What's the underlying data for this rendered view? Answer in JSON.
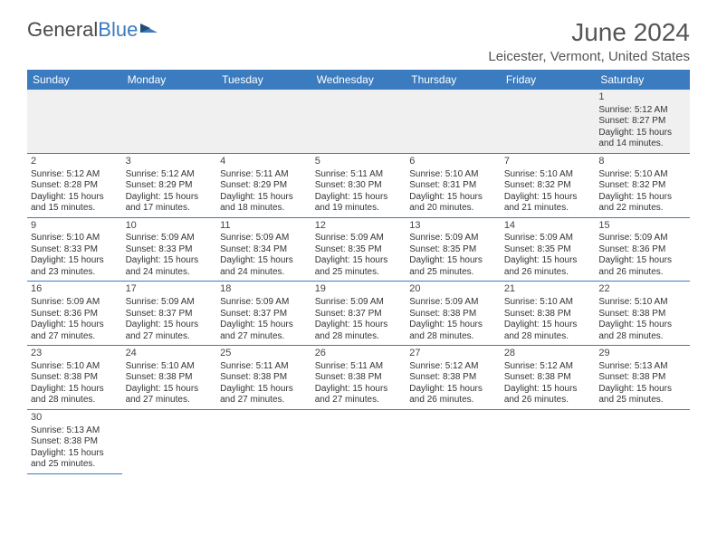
{
  "logo": {
    "text1": "General",
    "text2": "Blue"
  },
  "title": "June 2024",
  "location": "Leicester, Vermont, United States",
  "colors": {
    "header_bg": "#3b7bbf",
    "header_text": "#ffffff",
    "border": "#3b7bbf",
    "logo_gray": "#4a4a4a",
    "logo_blue": "#3b7bbf",
    "text": "#333333",
    "empty_bg": "#f0f0f0"
  },
  "days_of_week": [
    "Sunday",
    "Monday",
    "Tuesday",
    "Wednesday",
    "Thursday",
    "Friday",
    "Saturday"
  ],
  "weeks": [
    [
      null,
      null,
      null,
      null,
      null,
      null,
      {
        "n": "1",
        "sr": "Sunrise: 5:12 AM",
        "ss": "Sunset: 8:27 PM",
        "d1": "Daylight: 15 hours",
        "d2": "and 14 minutes."
      }
    ],
    [
      {
        "n": "2",
        "sr": "Sunrise: 5:12 AM",
        "ss": "Sunset: 8:28 PM",
        "d1": "Daylight: 15 hours",
        "d2": "and 15 minutes."
      },
      {
        "n": "3",
        "sr": "Sunrise: 5:12 AM",
        "ss": "Sunset: 8:29 PM",
        "d1": "Daylight: 15 hours",
        "d2": "and 17 minutes."
      },
      {
        "n": "4",
        "sr": "Sunrise: 5:11 AM",
        "ss": "Sunset: 8:29 PM",
        "d1": "Daylight: 15 hours",
        "d2": "and 18 minutes."
      },
      {
        "n": "5",
        "sr": "Sunrise: 5:11 AM",
        "ss": "Sunset: 8:30 PM",
        "d1": "Daylight: 15 hours",
        "d2": "and 19 minutes."
      },
      {
        "n": "6",
        "sr": "Sunrise: 5:10 AM",
        "ss": "Sunset: 8:31 PM",
        "d1": "Daylight: 15 hours",
        "d2": "and 20 minutes."
      },
      {
        "n": "7",
        "sr": "Sunrise: 5:10 AM",
        "ss": "Sunset: 8:32 PM",
        "d1": "Daylight: 15 hours",
        "d2": "and 21 minutes."
      },
      {
        "n": "8",
        "sr": "Sunrise: 5:10 AM",
        "ss": "Sunset: 8:32 PM",
        "d1": "Daylight: 15 hours",
        "d2": "and 22 minutes."
      }
    ],
    [
      {
        "n": "9",
        "sr": "Sunrise: 5:10 AM",
        "ss": "Sunset: 8:33 PM",
        "d1": "Daylight: 15 hours",
        "d2": "and 23 minutes."
      },
      {
        "n": "10",
        "sr": "Sunrise: 5:09 AM",
        "ss": "Sunset: 8:33 PM",
        "d1": "Daylight: 15 hours",
        "d2": "and 24 minutes."
      },
      {
        "n": "11",
        "sr": "Sunrise: 5:09 AM",
        "ss": "Sunset: 8:34 PM",
        "d1": "Daylight: 15 hours",
        "d2": "and 24 minutes."
      },
      {
        "n": "12",
        "sr": "Sunrise: 5:09 AM",
        "ss": "Sunset: 8:35 PM",
        "d1": "Daylight: 15 hours",
        "d2": "and 25 minutes."
      },
      {
        "n": "13",
        "sr": "Sunrise: 5:09 AM",
        "ss": "Sunset: 8:35 PM",
        "d1": "Daylight: 15 hours",
        "d2": "and 25 minutes."
      },
      {
        "n": "14",
        "sr": "Sunrise: 5:09 AM",
        "ss": "Sunset: 8:35 PM",
        "d1": "Daylight: 15 hours",
        "d2": "and 26 minutes."
      },
      {
        "n": "15",
        "sr": "Sunrise: 5:09 AM",
        "ss": "Sunset: 8:36 PM",
        "d1": "Daylight: 15 hours",
        "d2": "and 26 minutes."
      }
    ],
    [
      {
        "n": "16",
        "sr": "Sunrise: 5:09 AM",
        "ss": "Sunset: 8:36 PM",
        "d1": "Daylight: 15 hours",
        "d2": "and 27 minutes."
      },
      {
        "n": "17",
        "sr": "Sunrise: 5:09 AM",
        "ss": "Sunset: 8:37 PM",
        "d1": "Daylight: 15 hours",
        "d2": "and 27 minutes."
      },
      {
        "n": "18",
        "sr": "Sunrise: 5:09 AM",
        "ss": "Sunset: 8:37 PM",
        "d1": "Daylight: 15 hours",
        "d2": "and 27 minutes."
      },
      {
        "n": "19",
        "sr": "Sunrise: 5:09 AM",
        "ss": "Sunset: 8:37 PM",
        "d1": "Daylight: 15 hours",
        "d2": "and 28 minutes."
      },
      {
        "n": "20",
        "sr": "Sunrise: 5:09 AM",
        "ss": "Sunset: 8:38 PM",
        "d1": "Daylight: 15 hours",
        "d2": "and 28 minutes."
      },
      {
        "n": "21",
        "sr": "Sunrise: 5:10 AM",
        "ss": "Sunset: 8:38 PM",
        "d1": "Daylight: 15 hours",
        "d2": "and 28 minutes."
      },
      {
        "n": "22",
        "sr": "Sunrise: 5:10 AM",
        "ss": "Sunset: 8:38 PM",
        "d1": "Daylight: 15 hours",
        "d2": "and 28 minutes."
      }
    ],
    [
      {
        "n": "23",
        "sr": "Sunrise: 5:10 AM",
        "ss": "Sunset: 8:38 PM",
        "d1": "Daylight: 15 hours",
        "d2": "and 28 minutes."
      },
      {
        "n": "24",
        "sr": "Sunrise: 5:10 AM",
        "ss": "Sunset: 8:38 PM",
        "d1": "Daylight: 15 hours",
        "d2": "and 27 minutes."
      },
      {
        "n": "25",
        "sr": "Sunrise: 5:11 AM",
        "ss": "Sunset: 8:38 PM",
        "d1": "Daylight: 15 hours",
        "d2": "and 27 minutes."
      },
      {
        "n": "26",
        "sr": "Sunrise: 5:11 AM",
        "ss": "Sunset: 8:38 PM",
        "d1": "Daylight: 15 hours",
        "d2": "and 27 minutes."
      },
      {
        "n": "27",
        "sr": "Sunrise: 5:12 AM",
        "ss": "Sunset: 8:38 PM",
        "d1": "Daylight: 15 hours",
        "d2": "and 26 minutes."
      },
      {
        "n": "28",
        "sr": "Sunrise: 5:12 AM",
        "ss": "Sunset: 8:38 PM",
        "d1": "Daylight: 15 hours",
        "d2": "and 26 minutes."
      },
      {
        "n": "29",
        "sr": "Sunrise: 5:13 AM",
        "ss": "Sunset: 8:38 PM",
        "d1": "Daylight: 15 hours",
        "d2": "and 25 minutes."
      }
    ],
    [
      {
        "n": "30",
        "sr": "Sunrise: 5:13 AM",
        "ss": "Sunset: 8:38 PM",
        "d1": "Daylight: 15 hours",
        "d2": "and 25 minutes."
      },
      null,
      null,
      null,
      null,
      null,
      null
    ]
  ]
}
